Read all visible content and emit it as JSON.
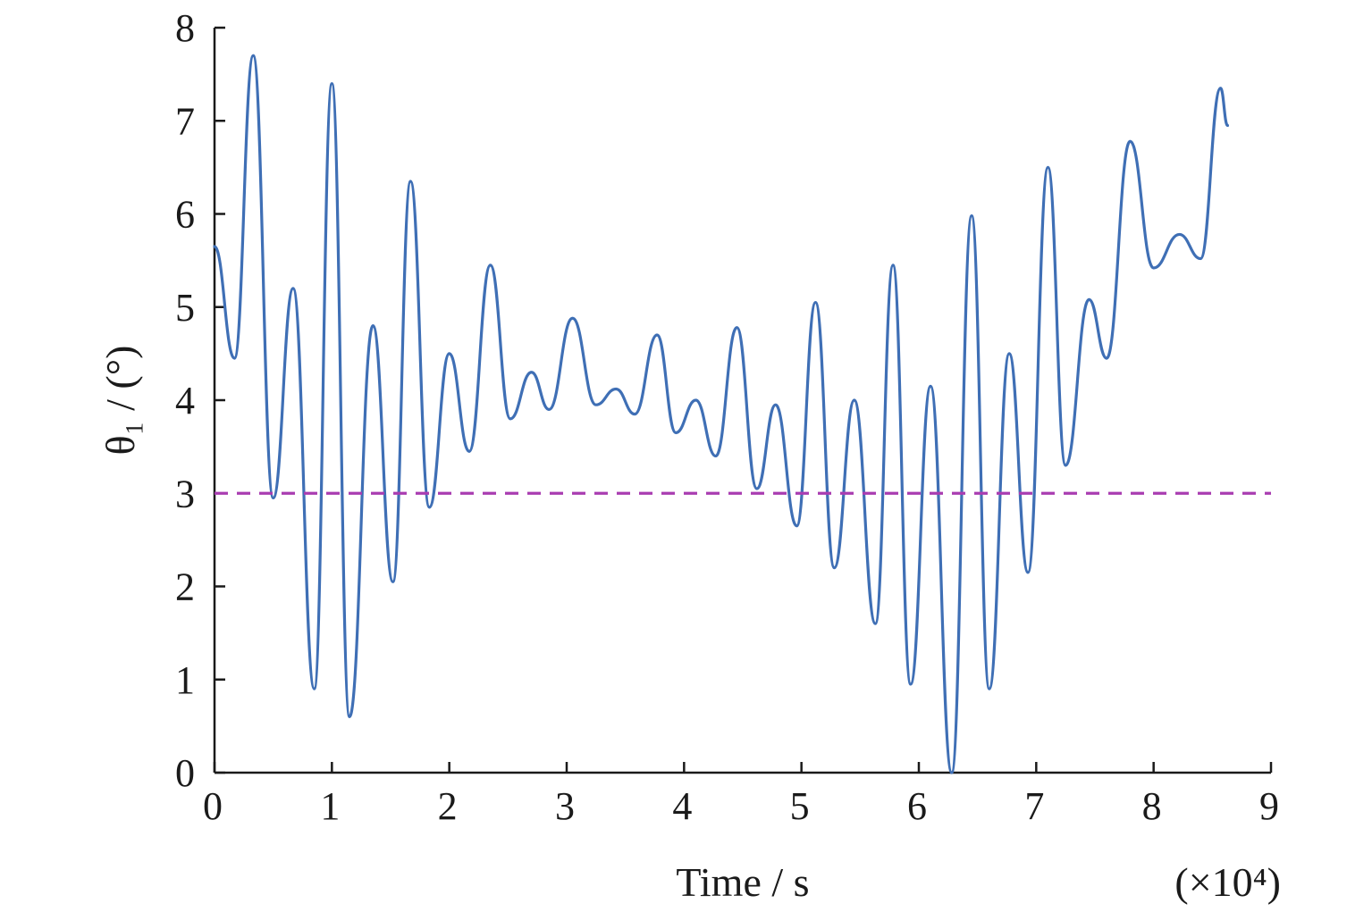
{
  "chart_data": {
    "type": "line",
    "xlabel": "Time / s",
    "x_multiplier_label": "(×10⁴)",
    "ylabel": "θ₁ / (°)",
    "xlim": [
      0,
      9
    ],
    "ylim": [
      0,
      8
    ],
    "x_ticks": [
      "0",
      "1",
      "2",
      "3",
      "4",
      "5",
      "6",
      "7",
      "8",
      "9"
    ],
    "y_ticks": [
      "0",
      "1",
      "2",
      "3",
      "4",
      "5",
      "6",
      "7",
      "8"
    ],
    "grid": false,
    "colors": {
      "series": "#3f6fb5",
      "threshold": "#a93db1"
    },
    "series": [
      {
        "style": "solid",
        "x": [
          0.0,
          0.17,
          0.33,
          0.5,
          0.67,
          0.85,
          1.0,
          1.15,
          1.35,
          1.52,
          1.67,
          1.83,
          2.0,
          2.17,
          2.35,
          2.52,
          2.7,
          2.85,
          3.05,
          3.25,
          3.42,
          3.58,
          3.77,
          3.93,
          4.1,
          4.27,
          4.45,
          4.62,
          4.78,
          4.96,
          5.12,
          5.28,
          5.45,
          5.63,
          5.78,
          5.93,
          6.1,
          6.28,
          6.45,
          6.6,
          6.77,
          6.93,
          7.1,
          7.25,
          7.45,
          7.6,
          7.8,
          8.0,
          8.22,
          8.4,
          8.57,
          8.63
        ],
        "y": [
          5.65,
          4.45,
          7.7,
          2.95,
          5.2,
          0.9,
          7.4,
          0.6,
          4.8,
          2.05,
          6.35,
          2.85,
          4.5,
          3.45,
          5.45,
          3.8,
          4.3,
          3.9,
          4.88,
          3.95,
          4.12,
          3.85,
          4.7,
          3.65,
          4.0,
          3.4,
          4.78,
          3.05,
          3.95,
          2.65,
          5.05,
          2.2,
          4.0,
          1.6,
          5.45,
          0.95,
          4.15,
          0.0,
          5.98,
          0.9,
          4.5,
          2.15,
          6.5,
          3.3,
          5.08,
          4.45,
          6.78,
          5.42,
          5.78,
          5.52,
          7.35,
          6.95
        ]
      },
      {
        "style": "dashed",
        "x": [
          0,
          9
        ],
        "y": [
          3,
          3
        ]
      }
    ]
  }
}
